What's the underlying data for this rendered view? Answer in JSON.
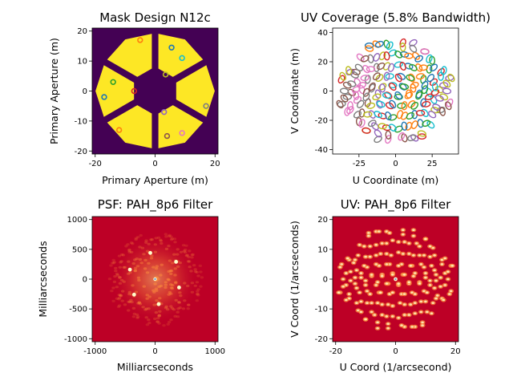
{
  "chart_data": [
    {
      "type": "heatmap",
      "title": "Mask Design N12c",
      "xlabel": "Primary Aperture (m)",
      "ylabel": "Primary Aperture (m)",
      "xlim": [
        -21,
        21
      ],
      "ylim": [
        -21,
        21
      ],
      "xticks": [
        -20,
        0,
        20
      ],
      "yticks": [
        -20,
        -10,
        0,
        10,
        20
      ],
      "colors": {
        "background": "#440154",
        "segment": "#fde725"
      },
      "mask_geometry": {
        "outer_radius": 19.5,
        "inner_hex_radius": 6,
        "segments": 6,
        "spider_angles_deg": [
          90,
          30,
          -30,
          -90,
          -150,
          150
        ]
      },
      "holes": [
        {
          "x": -5,
          "y": 17,
          "color": "#ff7f0e"
        },
        {
          "x": 5.5,
          "y": 14.5,
          "color": "#1f77b4"
        },
        {
          "x": 9,
          "y": 11,
          "color": "#17becf"
        },
        {
          "x": 3.5,
          "y": 5.5,
          "color": "#bcbd22"
        },
        {
          "x": -14,
          "y": 3,
          "color": "#2ca02c"
        },
        {
          "x": -7,
          "y": 0,
          "color": "#d62728"
        },
        {
          "x": -17,
          "y": -2,
          "color": "#1f77b4"
        },
        {
          "x": 17,
          "y": -5,
          "color": "#7f7f7f"
        },
        {
          "x": 3,
          "y": -7,
          "color": "#9467bd"
        },
        {
          "x": -12,
          "y": -13,
          "color": "#ff7f0e"
        },
        {
          "x": 9,
          "y": -14,
          "color": "#e377c2"
        },
        {
          "x": 4,
          "y": -15,
          "color": "#8c564b"
        }
      ]
    },
    {
      "type": "scatter",
      "title": "UV Coverage (5.8% Bandwidth)",
      "xlabel": "U Coordinate (m)",
      "ylabel": "V Coordinate (m)",
      "xlim": [
        -43,
        43
      ],
      "ylim": [
        -43,
        43
      ],
      "xticks": [
        -25,
        0,
        25
      ],
      "yticks": [
        -40,
        -20,
        0,
        20,
        40
      ],
      "marker": "ellipse outline",
      "palette": [
        "#1f77b4",
        "#ff7f0e",
        "#2ca02c",
        "#d62728",
        "#9467bd",
        "#8c564b",
        "#e377c2",
        "#7f7f7f",
        "#bcbd22",
        "#17becf"
      ],
      "points": [
        [
          -18,
          31
        ],
        [
          -13,
          32
        ],
        [
          -6,
          32
        ],
        [
          5,
          33
        ],
        [
          12,
          33
        ],
        [
          20,
          27
        ],
        [
          -24,
          23
        ],
        [
          -17,
          22
        ],
        [
          -9,
          24
        ],
        [
          -2,
          26
        ],
        [
          6,
          25
        ],
        [
          14,
          24
        ],
        [
          25,
          21
        ],
        [
          -37,
          8
        ],
        [
          -31,
          13
        ],
        [
          -27,
          13
        ],
        [
          -20,
          15
        ],
        [
          -13,
          16
        ],
        [
          -6,
          17
        ],
        [
          2,
          18
        ],
        [
          9,
          17
        ],
        [
          16,
          16
        ],
        [
          23,
          15
        ],
        [
          31,
          13
        ],
        [
          37,
          9
        ],
        [
          -33,
          4
        ],
        [
          -26,
          6
        ],
        [
          -19,
          8
        ],
        [
          -11,
          9
        ],
        [
          -4,
          10
        ],
        [
          4,
          10
        ],
        [
          11,
          9
        ],
        [
          19,
          8
        ],
        [
          26,
          6
        ],
        [
          33,
          4
        ],
        [
          -30,
          -1
        ],
        [
          -23,
          1
        ],
        [
          -16,
          2
        ],
        [
          -9,
          3
        ],
        [
          -2,
          4
        ],
        [
          5,
          3
        ],
        [
          12,
          2
        ],
        [
          20,
          1
        ],
        [
          27,
          -1
        ],
        [
          35,
          0
        ],
        [
          -35,
          -5
        ],
        [
          -27,
          -3
        ],
        [
          -20,
          -4
        ],
        [
          -13,
          -4
        ],
        [
          -6,
          -3
        ],
        [
          2,
          -3
        ],
        [
          9,
          -2
        ],
        [
          16,
          -3
        ],
        [
          23,
          -4
        ],
        [
          30,
          -5
        ],
        [
          -38,
          -9
        ],
        [
          -31,
          -10
        ],
        [
          -24,
          -9
        ],
        [
          -17,
          -10
        ],
        [
          -10,
          -9
        ],
        [
          -2,
          -9
        ],
        [
          6,
          -10
        ],
        [
          13,
          -10
        ],
        [
          21,
          -9
        ],
        [
          28,
          -11
        ],
        [
          36,
          -10
        ],
        [
          -33,
          -14
        ],
        [
          -26,
          -16
        ],
        [
          -19,
          -16
        ],
        [
          -12,
          -16
        ],
        [
          -5,
          -17
        ],
        [
          3,
          -16
        ],
        [
          10,
          -17
        ],
        [
          17,
          -15
        ],
        [
          25,
          -16
        ],
        [
          32,
          -14
        ],
        [
          -23,
          -22
        ],
        [
          -16,
          -22
        ],
        [
          -9,
          -24
        ],
        [
          -2,
          -25
        ],
        [
          6,
          -24
        ],
        [
          13,
          -23
        ],
        [
          21,
          -22
        ],
        [
          -20,
          -27
        ],
        [
          -12,
          -29
        ],
        [
          -5,
          -30
        ],
        [
          4,
          -31
        ],
        [
          11,
          -32
        ],
        [
          18,
          -29
        ]
      ]
    },
    {
      "type": "heatmap",
      "title": "PSF: PAH_8p6 Filter",
      "xlabel": "Milliarcseconds",
      "ylabel": "Milliarcseconds",
      "xlim": [
        -1050,
        1050
      ],
      "ylim": [
        -1050,
        1050
      ],
      "xticks": [
        -1000,
        0,
        1000
      ],
      "yticks": [
        -1000,
        -500,
        0,
        500,
        1000
      ],
      "colors": {
        "background": "#bd0026",
        "bright": "#ffffcc",
        "mid": "#fd8d3c"
      },
      "envelope_radius_mas": 750,
      "bright_spots": [
        {
          "x": 0,
          "y": 0
        },
        {
          "x": -80,
          "y": 440
        },
        {
          "x": 350,
          "y": 290
        },
        {
          "x": -420,
          "y": 160
        },
        {
          "x": 400,
          "y": -140
        },
        {
          "x": -350,
          "y": -260
        },
        {
          "x": 60,
          "y": -420
        }
      ]
    },
    {
      "type": "heatmap",
      "title": "UV: PAH_8p6 Filter",
      "xlabel": "U Coord (1/arcsecond)",
      "ylabel": "V Coord (1/arcseconds)",
      "xlim": [
        -21,
        21
      ],
      "ylim": [
        -21,
        21
      ],
      "xticks": [
        -20,
        0,
        20
      ],
      "yticks": [
        -20,
        -10,
        0,
        10,
        20
      ],
      "colors": {
        "background": "#bd0026",
        "bright": "#ffffcc",
        "mid": "#fd8d3c"
      },
      "scale_from_uv_coverage": 0.5
    }
  ]
}
